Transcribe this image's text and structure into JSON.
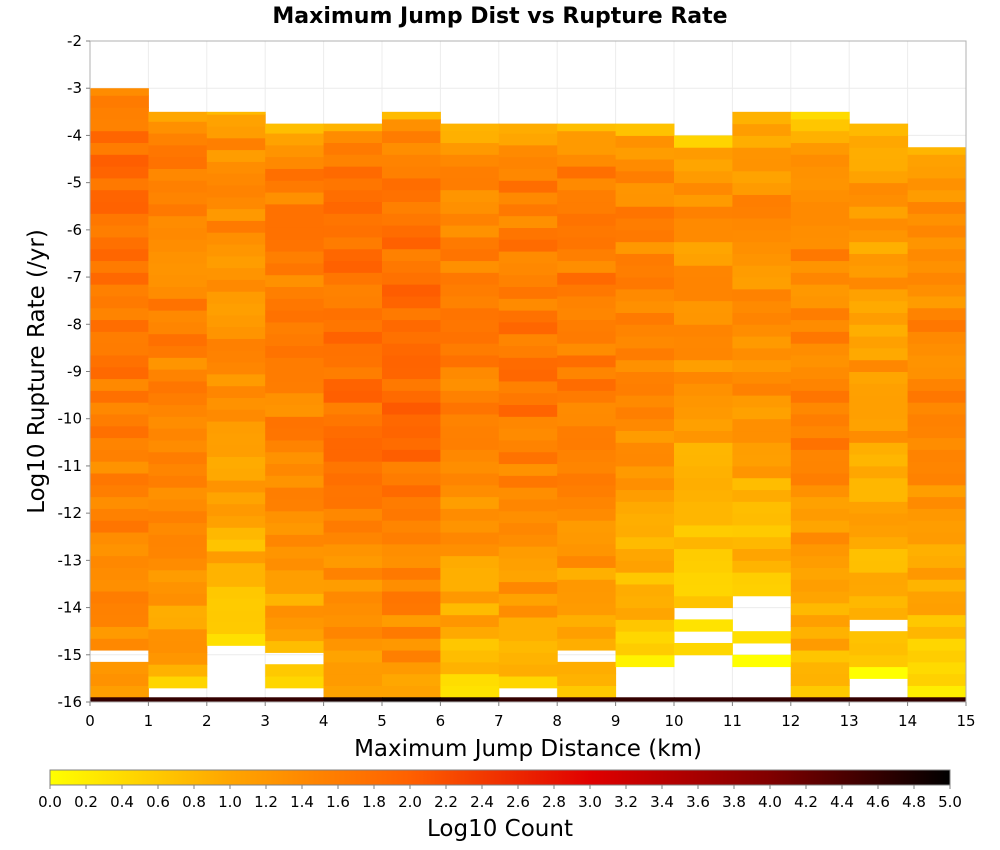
{
  "chart_data": {
    "type": "heatmap",
    "title": "Maximum Jump Dist vs Rupture Rate",
    "xlabel": "Maximum Jump Distance (km)",
    "ylabel": "Log10 Rupture Rate (/yr)",
    "colorbar_label": "Log10 Count",
    "xlim": [
      0,
      15
    ],
    "ylim": [
      -16,
      -2
    ],
    "x_ticks": [
      "0",
      "1",
      "2",
      "3",
      "4",
      "5",
      "6",
      "7",
      "8",
      "9",
      "10",
      "11",
      "12",
      "13",
      "14",
      "15"
    ],
    "y_ticks": [
      "-16",
      "-15",
      "-14",
      "-13",
      "-12",
      "-11",
      "-10",
      "-9",
      "-8",
      "-7",
      "-6",
      "-5",
      "-4",
      "-3",
      "-2"
    ],
    "colorbar_ticks": [
      "0.0",
      "0.2",
      "0.4",
      "0.6",
      "0.8",
      "1.0",
      "1.2",
      "1.4",
      "1.6",
      "1.8",
      "2.0",
      "2.2",
      "2.4",
      "2.6",
      "2.8",
      "3.0",
      "3.2",
      "3.4",
      "3.6",
      "3.8",
      "4.0",
      "4.2",
      "4.4",
      "4.6",
      "4.8",
      "5.0"
    ],
    "color_range": [
      0,
      5
    ],
    "x_bin_width": 1,
    "y_bin_height": 0.25,
    "grid": true,
    "colorbar_placement": "bottom",
    "colormap": [
      "#ffff00",
      "#ffa500",
      "#ff6000",
      "#e00000",
      "#800000",
      "#000000"
    ],
    "bottom_row": {
      "y_from": -16,
      "y_to": -15.9,
      "values": [
        4.6,
        4.6,
        4.6,
        4.6,
        4.8,
        4.9,
        4.8,
        4.6,
        4.6,
        4.6,
        4.6,
        4.6,
        4.6,
        4.6,
        4.6
      ]
    },
    "columns": [
      {
        "x": 0,
        "top": -3.0,
        "bottom": -15.9,
        "lower": 1.2,
        "mid": 1.6,
        "upper": 1.9,
        "gaps": [
          [
            -15.25,
            -15.0
          ]
        ]
      },
      {
        "x": 1,
        "top": -3.5,
        "bottom": -15.7,
        "lower": 1.0,
        "mid": 1.5,
        "upper": 1.5,
        "gaps": []
      },
      {
        "x": 2,
        "top": -3.5,
        "bottom": -14.8,
        "lower": 0.7,
        "mid": 1.3,
        "upper": 1.4,
        "gaps": []
      },
      {
        "x": 3,
        "top": -3.75,
        "bottom": -15.7,
        "lower": 0.9,
        "mid": 1.5,
        "upper": 1.6,
        "gaps": [
          [
            -15.25,
            -15.0
          ]
        ]
      },
      {
        "x": 4,
        "top": -3.75,
        "bottom": -15.9,
        "lower": 1.1,
        "mid": 1.8,
        "upper": 1.7,
        "gaps": []
      },
      {
        "x": 5,
        "top": -3.5,
        "bottom": -15.9,
        "lower": 1.2,
        "mid": 1.9,
        "upper": 1.6,
        "gaps": []
      },
      {
        "x": 6,
        "top": -3.75,
        "bottom": -15.9,
        "lower": 0.7,
        "mid": 1.6,
        "upper": 1.3,
        "gaps": []
      },
      {
        "x": 7,
        "top": -3.75,
        "bottom": -15.7,
        "lower": 0.9,
        "mid": 1.7,
        "upper": 1.5,
        "gaps": []
      },
      {
        "x": 8,
        "top": -3.75,
        "bottom": -15.9,
        "lower": 0.8,
        "mid": 1.6,
        "upper": 1.6,
        "gaps": [
          [
            -15.25,
            -15.0
          ]
        ]
      },
      {
        "x": 9,
        "top": -3.75,
        "bottom": -15.25,
        "lower": 0.6,
        "mid": 1.4,
        "upper": 1.5,
        "gaps": []
      },
      {
        "x": 10,
        "top": -4.0,
        "bottom": -15.0,
        "lower": 0.5,
        "mid": 1.2,
        "upper": 1.3,
        "gaps": [
          [
            -14.25,
            -14.0
          ],
          [
            -14.75,
            -14.5
          ]
        ]
      },
      {
        "x": 11,
        "top": -3.5,
        "bottom": -15.25,
        "lower": 0.4,
        "mid": 1.3,
        "upper": 1.3,
        "gaps": [
          [
            -14.5,
            -13.75
          ],
          [
            -15.0,
            -14.75
          ]
        ]
      },
      {
        "x": 12,
        "top": -3.5,
        "bottom": -15.9,
        "lower": 0.8,
        "mid": 1.6,
        "upper": 1.2,
        "gaps": []
      },
      {
        "x": 13,
        "top": -3.75,
        "bottom": -15.5,
        "lower": 0.5,
        "mid": 1.2,
        "upper": 1.1,
        "gaps": [
          [
            -14.5,
            -14.25
          ]
        ]
      },
      {
        "x": 14,
        "top": -4.25,
        "bottom": -15.9,
        "lower": 0.5,
        "mid": 1.5,
        "upper": 1.3,
        "gaps": []
      }
    ]
  }
}
